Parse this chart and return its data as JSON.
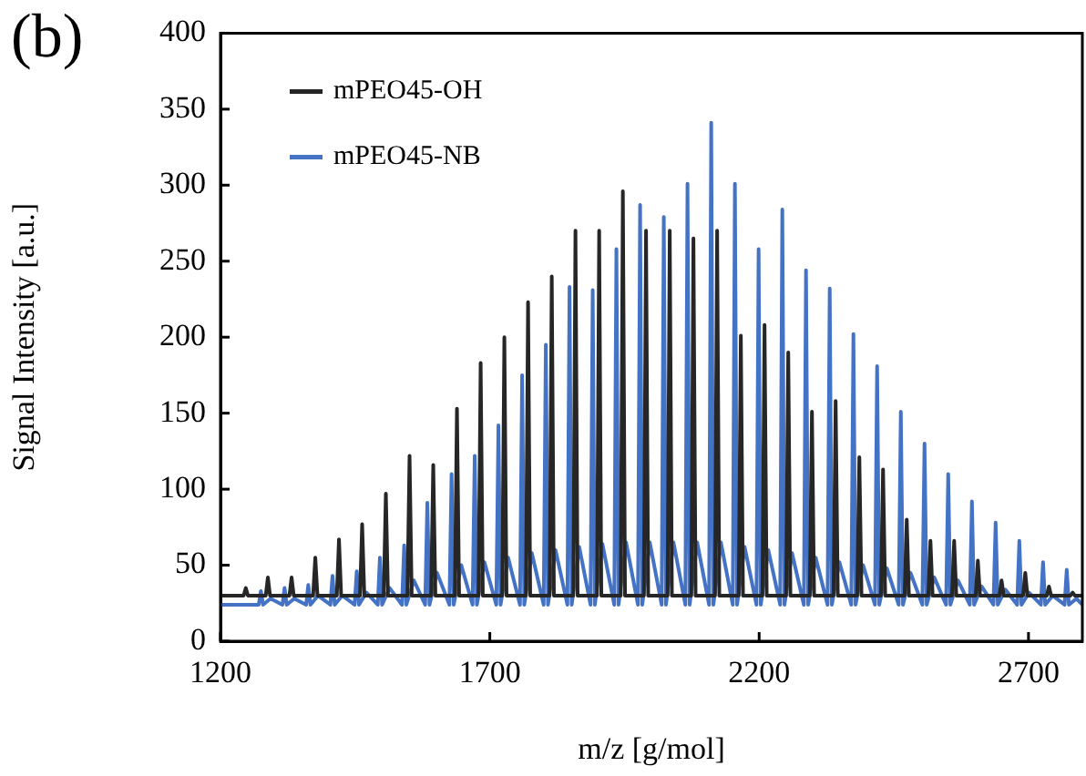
{
  "chart_data": {
    "type": "line",
    "xlabel": "m/z [g/mol]",
    "ylabel": "Signal Intensity [a.u.]",
    "annotations": [
      "(b)"
    ],
    "xlim": [
      1200,
      2800
    ],
    "xticks": [
      1200,
      1700,
      2200,
      2700
    ],
    "ylim": [
      0,
      400
    ],
    "yticks": [
      0,
      50,
      100,
      150,
      200,
      250,
      300,
      350,
      400
    ],
    "grid": false,
    "legend": "top left",
    "marker": "none",
    "line_style": "solid",
    "series": [
      {
        "name": "mPEO45-OH",
        "color": "#262626",
        "x": [
          1200,
          1243,
          1247,
          1251,
          1284,
          1288,
          1292,
          1328,
          1332,
          1336,
          1372,
          1376,
          1380,
          1416,
          1420,
          1424,
          1459,
          1463,
          1467,
          1503,
          1507,
          1511,
          1547,
          1551,
          1555,
          1591,
          1595,
          1599,
          1635,
          1639,
          1643,
          1679,
          1683,
          1687,
          1723,
          1727,
          1731,
          1767,
          1771,
          1775,
          1811,
          1815,
          1819,
          1855,
          1859,
          1863,
          1899,
          1903,
          1907,
          1943,
          1947,
          1951,
          1986,
          1990,
          1994,
          2030,
          2034,
          2038,
          2074,
          2078,
          2082,
          2118,
          2122,
          2126,
          2162,
          2166,
          2170,
          2206,
          2210,
          2214,
          2250,
          2254,
          2258,
          2294,
          2298,
          2302,
          2338,
          2342,
          2346,
          2382,
          2386,
          2390,
          2426,
          2430,
          2434,
          2470,
          2474,
          2478,
          2514,
          2518,
          2522,
          2558,
          2562,
          2566,
          2602,
          2606,
          2610,
          2646,
          2650,
          2654,
          2690,
          2694,
          2698,
          2734,
          2738,
          2742,
          2778,
          2782,
          2786,
          2800
        ],
        "values": [
          30,
          30,
          35,
          30,
          30,
          42,
          30,
          30,
          42,
          30,
          30,
          55,
          30,
          30,
          67,
          30,
          30,
          77,
          30,
          30,
          97,
          30,
          30,
          122,
          30,
          30,
          116,
          30,
          30,
          153,
          30,
          30,
          183,
          30,
          30,
          200,
          30,
          30,
          223,
          30,
          30,
          240,
          30,
          30,
          270,
          30,
          30,
          270,
          30,
          30,
          296,
          30,
          30,
          270,
          30,
          30,
          270,
          30,
          30,
          265,
          30,
          30,
          270,
          30,
          30,
          201,
          30,
          30,
          208,
          30,
          30,
          190,
          30,
          30,
          151,
          30,
          30,
          158,
          30,
          30,
          121,
          30,
          30,
          113,
          30,
          30,
          80,
          30,
          30,
          66,
          30,
          30,
          66,
          30,
          30,
          53,
          30,
          30,
          40,
          30,
          30,
          45,
          30,
          30,
          36,
          30,
          30,
          32,
          30,
          30
        ]
      },
      {
        "name": "mPEO45-NB",
        "color": "#4472c4",
        "x": [
          1200,
          1271,
          1275,
          1279,
          1293,
          1315,
          1319,
          1323,
          1337,
          1359,
          1363,
          1367,
          1381,
          1404,
          1408,
          1412,
          1426,
          1449,
          1453,
          1457,
          1471,
          1492,
          1496,
          1500,
          1514,
          1537,
          1541,
          1545,
          1559,
          1580,
          1584,
          1588,
          1602,
          1625,
          1629,
          1633,
          1647,
          1668,
          1672,
          1676,
          1690,
          1712,
          1716,
          1720,
          1734,
          1756,
          1760,
          1764,
          1778,
          1800,
          1804,
          1808,
          1822,
          1844,
          1848,
          1852,
          1866,
          1887,
          1891,
          1895,
          1909,
          1931,
          1935,
          1939,
          1953,
          1975,
          1979,
          1983,
          1997,
          2019,
          2023,
          2027,
          2041,
          2063,
          2067,
          2071,
          2085,
          2107,
          2111,
          2115,
          2129,
          2151,
          2155,
          2159,
          2173,
          2195,
          2199,
          2203,
          2217,
          2239,
          2243,
          2247,
          2261,
          2283,
          2287,
          2291,
          2305,
          2327,
          2331,
          2335,
          2349,
          2371,
          2375,
          2379,
          2393,
          2415,
          2419,
          2423,
          2437,
          2459,
          2463,
          2467,
          2481,
          2503,
          2507,
          2511,
          2525,
          2547,
          2551,
          2555,
          2569,
          2591,
          2595,
          2599,
          2613,
          2635,
          2639,
          2643,
          2657,
          2679,
          2683,
          2687,
          2701,
          2723,
          2727,
          2731,
          2745,
          2767,
          2771,
          2775,
          2789,
          2800
        ],
        "values": [
          24,
          24,
          33,
          24,
          28,
          24,
          35,
          24,
          28,
          24,
          37,
          24,
          30,
          24,
          43,
          24,
          30,
          24,
          46,
          24,
          32,
          24,
          55,
          24,
          35,
          24,
          63,
          24,
          40,
          24,
          91,
          24,
          45,
          24,
          110,
          24,
          50,
          24,
          122,
          24,
          52,
          24,
          142,
          24,
          55,
          24,
          175,
          24,
          58,
          24,
          195,
          24,
          60,
          24,
          233,
          24,
          62,
          24,
          231,
          24,
          64,
          24,
          258,
          24,
          65,
          24,
          287,
          24,
          65,
          24,
          279,
          24,
          65,
          24,
          301,
          24,
          65,
          24,
          341,
          24,
          65,
          24,
          301,
          24,
          62,
          24,
          258,
          24,
          60,
          24,
          284,
          24,
          58,
          24,
          244,
          24,
          55,
          24,
          232,
          24,
          52,
          24,
          202,
          24,
          50,
          24,
          181,
          24,
          48,
          24,
          151,
          24,
          45,
          24,
          130,
          24,
          42,
          24,
          110,
          24,
          40,
          24,
          92,
          24,
          36,
          24,
          78,
          24,
          34,
          24,
          66,
          24,
          32,
          24,
          52,
          24,
          30,
          24,
          47,
          24,
          28,
          24
        ]
      }
    ]
  }
}
